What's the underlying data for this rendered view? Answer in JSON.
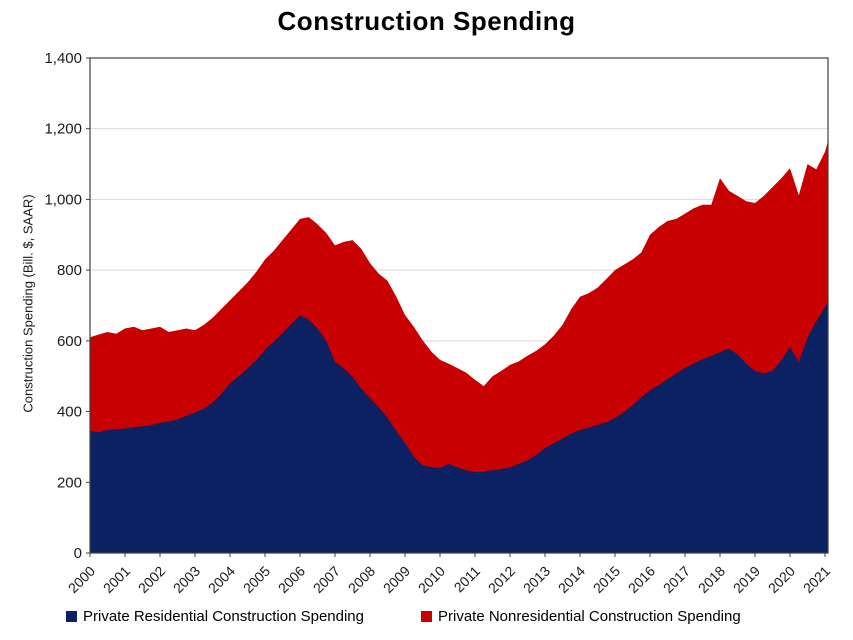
{
  "title": "Construction Spending",
  "colors": {
    "residential": "#0b2161",
    "nonresidential": "#c80000",
    "grid": "#d9d9d9",
    "frame": "#404040",
    "tick_text": "#1a1a1a"
  },
  "chart_data": {
    "type": "area",
    "stacked": true,
    "title": "Construction Spending",
    "xlabel": "",
    "ylabel": "Construction Spending (Bill. $, SAAR)",
    "ylim": [
      0,
      1400
    ],
    "xlim": [
      2000,
      2021.1
    ],
    "y_ticks": [
      0,
      200,
      400,
      600,
      800,
      1000,
      1200,
      1400
    ],
    "x_ticks": [
      2000,
      2001,
      2002,
      2003,
      2004,
      2005,
      2006,
      2007,
      2008,
      2009,
      2010,
      2011,
      2012,
      2013,
      2014,
      2015,
      2016,
      2017,
      2018,
      2019,
      2020,
      2021
    ],
    "grid": "horizontal",
    "legend_position": "bottom",
    "units": "Billions of dollars, SAAR",
    "x": [
      2000.0,
      2000.25,
      2000.5,
      2000.75,
      2001.0,
      2001.25,
      2001.5,
      2001.75,
      2002.0,
      2002.25,
      2002.5,
      2002.75,
      2003.0,
      2003.25,
      2003.5,
      2003.75,
      2004.0,
      2004.25,
      2004.5,
      2004.75,
      2005.0,
      2005.25,
      2005.5,
      2005.75,
      2006.0,
      2006.25,
      2006.5,
      2006.75,
      2007.0,
      2007.25,
      2007.5,
      2007.75,
      2008.0,
      2008.25,
      2008.5,
      2008.75,
      2009.0,
      2009.25,
      2009.5,
      2009.75,
      2010.0,
      2010.25,
      2010.5,
      2010.75,
      2011.0,
      2011.25,
      2011.5,
      2011.75,
      2012.0,
      2012.25,
      2012.5,
      2012.75,
      2013.0,
      2013.25,
      2013.5,
      2013.75,
      2014.0,
      2014.25,
      2014.5,
      2014.75,
      2015.0,
      2015.25,
      2015.5,
      2015.75,
      2016.0,
      2016.25,
      2016.5,
      2016.75,
      2017.0,
      2017.25,
      2017.5,
      2017.75,
      2018.0,
      2018.25,
      2018.5,
      2018.75,
      2019.0,
      2019.25,
      2019.5,
      2019.75,
      2020.0,
      2020.25,
      2020.5,
      2020.75,
      2021.0,
      2021.08
    ],
    "series": [
      {
        "name": "Private Residential Construction Spending",
        "color": "#0b2161",
        "values": [
          345,
          342,
          348,
          350,
          352,
          356,
          358,
          362,
          368,
          372,
          378,
          388,
          398,
          408,
          425,
          450,
          480,
          500,
          522,
          545,
          575,
          598,
          622,
          648,
          672,
          660,
          635,
          600,
          540,
          522,
          498,
          465,
          438,
          412,
          382,
          345,
          312,
          272,
          248,
          243,
          240,
          252,
          242,
          234,
          229,
          231,
          234,
          238,
          242,
          252,
          262,
          278,
          297,
          310,
          324,
          338,
          348,
          355,
          362,
          370,
          382,
          398,
          418,
          440,
          461,
          475,
          492,
          508,
          523,
          535,
          548,
          558,
          568,
          578,
          562,
          535,
          515,
          508,
          515,
          545,
          583,
          540,
          610,
          655,
          695,
          712
        ]
      },
      {
        "name": "Private Nonresidential Construction Spending",
        "color": "#c80000",
        "values": [
          265,
          276,
          277,
          270,
          283,
          284,
          272,
          273,
          272,
          253,
          252,
          247,
          232,
          237,
          240,
          240,
          235,
          240,
          243,
          250,
          255,
          257,
          263,
          267,
          273,
          290,
          295,
          305,
          330,
          358,
          387,
          395,
          382,
          378,
          388,
          380,
          361,
          368,
          354,
          327,
          306,
          283,
          281,
          276,
          261,
          241,
          266,
          277,
          290,
          290,
          296,
          294,
          293,
          305,
          321,
          352,
          377,
          380,
          388,
          405,
          418,
          417,
          412,
          410,
          439,
          447,
          447,
          437,
          437,
          440,
          437,
          427,
          492,
          447,
          448,
          460,
          475,
          502,
          520,
          515,
          505,
          472,
          490,
          430,
          440,
          451
        ]
      }
    ]
  }
}
